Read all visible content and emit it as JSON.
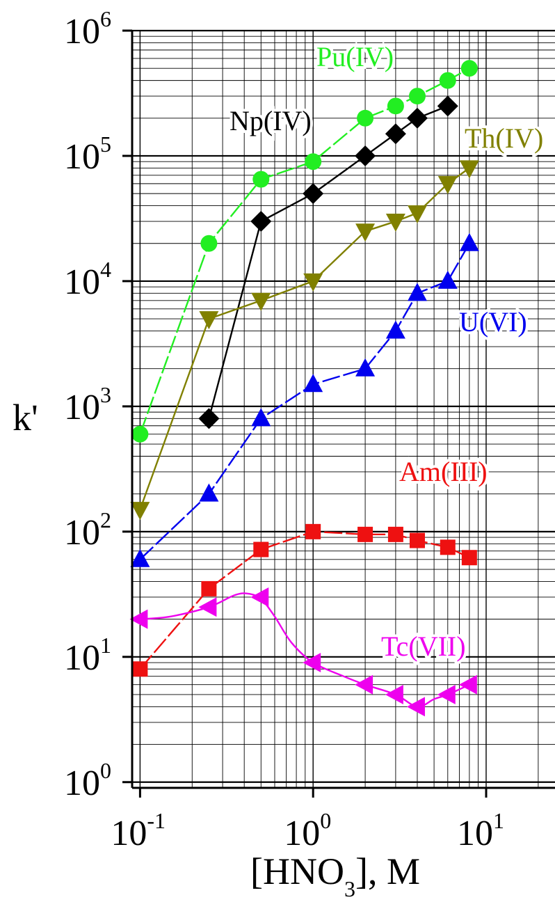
{
  "chart_data": {
    "type": "line",
    "xlabel": "[HNO",
    "xlabel_sub": "3",
    "xlabel_suffix": "], M",
    "ylabel": "k'",
    "x_scale": "log",
    "y_scale": "log",
    "xlim": [
      0.09,
      25
    ],
    "ylim": [
      0.9,
      1000000
    ],
    "grid": true,
    "x_ticks": [
      {
        "base": "10",
        "exp": "-1",
        "value": 0.1
      },
      {
        "base": "10",
        "exp": "0",
        "value": 1
      },
      {
        "base": "10",
        "exp": "1",
        "value": 10
      }
    ],
    "y_ticks": [
      {
        "base": "10",
        "exp": "0",
        "value": 1
      },
      {
        "base": "10",
        "exp": "1",
        "value": 10
      },
      {
        "base": "10",
        "exp": "2",
        "value": 100
      },
      {
        "base": "10",
        "exp": "3",
        "value": 1000
      },
      {
        "base": "10",
        "exp": "4",
        "value": 10000
      },
      {
        "base": "10",
        "exp": "5",
        "value": 100000
      },
      {
        "base": "10",
        "exp": "6",
        "value": 1000000
      }
    ],
    "series": [
      {
        "name": "Pu(IV)",
        "color": "#22ee22",
        "marker": "circle",
        "line": "dashed",
        "x": [
          0.1,
          0.25,
          0.5,
          1,
          2,
          3,
          4,
          6,
          8
        ],
        "y": [
          600,
          20000,
          65000,
          90000,
          200000,
          250000,
          300000,
          400000,
          500000
        ]
      },
      {
        "name": "Np(IV)",
        "color": "#000000",
        "marker": "diamond",
        "line": "solid",
        "x": [
          0.25,
          0.5,
          1,
          2,
          3,
          4,
          6
        ],
        "y": [
          800,
          30000,
          50000,
          100000,
          150000,
          200000,
          250000
        ]
      },
      {
        "name": "Th(IV)",
        "color": "#808000",
        "marker": "triangle-down",
        "line": "solid",
        "x": [
          0.1,
          0.25,
          0.5,
          1,
          2,
          3,
          4,
          6,
          8
        ],
        "y": [
          150,
          5000,
          7000,
          10000,
          25000,
          30000,
          35000,
          60000,
          80000
        ]
      },
      {
        "name": "U(VI)",
        "color": "#0000ee",
        "marker": "triangle-up",
        "line": "dashed",
        "x": [
          0.1,
          0.25,
          0.5,
          1,
          2,
          3,
          4,
          6,
          8
        ],
        "y": [
          60,
          200,
          800,
          1500,
          2000,
          4000,
          8000,
          10000,
          20000
        ]
      },
      {
        "name": "Am(III)",
        "color": "#ee1111",
        "marker": "square",
        "line": "dashed",
        "x": [
          0.1,
          0.25,
          0.5,
          1,
          2,
          3,
          4,
          6,
          8
        ],
        "y": [
          8,
          35,
          72,
          100,
          95,
          95,
          85,
          75,
          62
        ]
      },
      {
        "name": "Tc(VII)",
        "color": "#ee00ee",
        "marker": "triangle-left",
        "line": "smooth",
        "x": [
          0.1,
          0.25,
          0.5,
          1,
          2,
          3,
          4,
          6,
          8
        ],
        "y": [
          20,
          25,
          30,
          9,
          6,
          5,
          4,
          5,
          6
        ],
        "curve_x": [
          0.1,
          0.15,
          0.25,
          0.35,
          0.42,
          0.5,
          0.6,
          0.75,
          1,
          1.5,
          2,
          3,
          4,
          5,
          6,
          8
        ],
        "curve_y": [
          20,
          21,
          25,
          31,
          32,
          29,
          21,
          13,
          9,
          7,
          6,
          5,
          4,
          4.6,
          5,
          6
        ]
      }
    ],
    "label_positions": [
      "top-center",
      "upper-middle",
      "top-right",
      "right",
      "mid-right",
      "lower-right"
    ]
  }
}
